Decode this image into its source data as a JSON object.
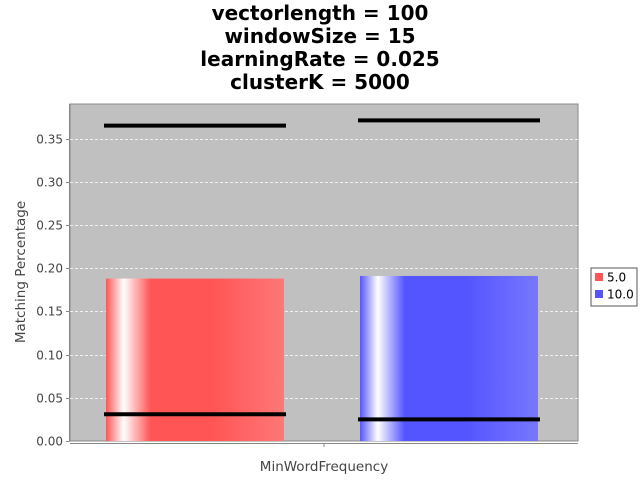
{
  "chart_data": {
    "type": "bar",
    "title_lines": [
      "vectorlength = 100",
      "windowSize = 15",
      "learningRate = 0.025",
      "clusterK = 5000"
    ],
    "xlabel": "MinWordFrequency",
    "ylabel": "Matching Percentage",
    "ylim": [
      0,
      0.39
    ],
    "yticks": [
      "0.00",
      "0.05",
      "0.10",
      "0.15",
      "0.20",
      "0.25",
      "0.30",
      "0.35"
    ],
    "grid": true,
    "legend_position": "right",
    "series": [
      {
        "name": "5.0",
        "value": 0.188,
        "high": 0.365,
        "low": 0.031,
        "color": "#ff5555"
      },
      {
        "name": "10.0",
        "value": 0.191,
        "high": 0.371,
        "low": 0.025,
        "color": "#5555ff"
      }
    ]
  }
}
